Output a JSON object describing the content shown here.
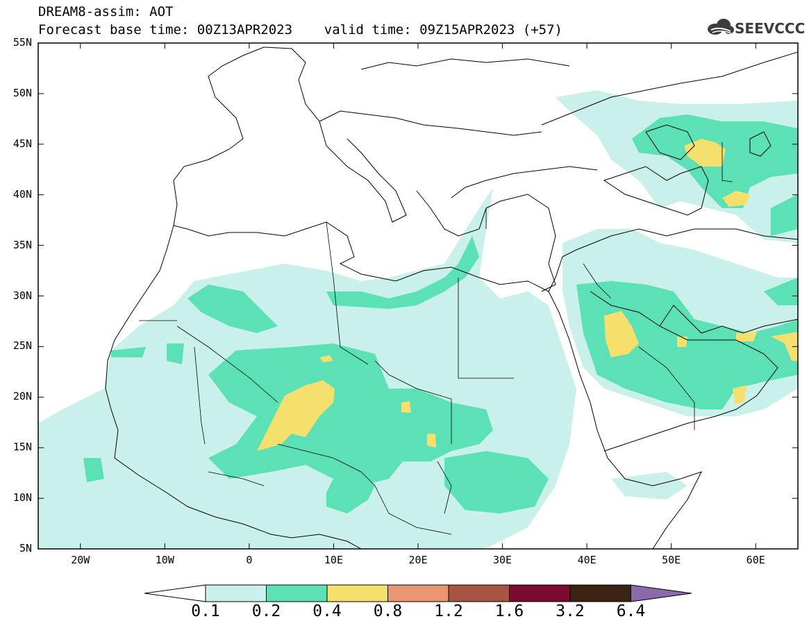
{
  "header": {
    "line1": "DREAM8-assim: AOT",
    "line2": "Forecast base time: 00Z13APR2023    valid time: 09Z15APR2023 (+57)"
  },
  "logo": {
    "text": "SEEVCCC",
    "icon": "cloud-icon",
    "color": "#3d3d3d"
  },
  "map": {
    "variable": "AOT",
    "lon_range": [
      -25,
      65
    ],
    "lat_range": [
      5,
      55
    ],
    "lat_labels": [
      "55N",
      "50N",
      "45N",
      "40N",
      "35N",
      "30N",
      "25N",
      "20N",
      "15N",
      "10N",
      "5N"
    ],
    "lon_labels": [
      "20W",
      "10W",
      "0",
      "10E",
      "20E",
      "30E",
      "40E",
      "50E",
      "60E"
    ]
  },
  "colorbar": {
    "colors": [
      "#c9f0ea",
      "#5ce0b5",
      "#f5e06e",
      "#e89570",
      "#a85443",
      "#7a0a2e",
      "#3b2314",
      "#8a6aa8"
    ],
    "ticks": [
      "0.1",
      "0.2",
      "0.4",
      "0.8",
      "1.2",
      "1.6",
      "3.2",
      "6.4"
    ]
  }
}
